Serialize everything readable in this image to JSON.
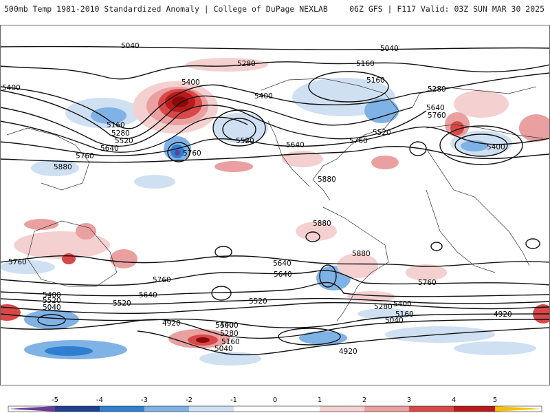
{
  "header": {
    "left_title": "500mb Temp 1981-2010 Standardized Anomaly | College of DuPage NEXLAB",
    "right_title": "06Z GFS | F117 Valid: 03Z SUN MAR 30 2025"
  },
  "colors": {
    "cold_5": "#6a3d9a",
    "cold_4": "#1f3f8f",
    "cold_3": "#2f7fd0",
    "cold_2": "#7fb2e5",
    "cold_1": "#cfe0f2",
    "warm_1": "#f5d0d0",
    "warm_2": "#eaa0a0",
    "warm_3": "#d94848",
    "warm_4": "#b81b1b",
    "warm_5": "#8a0a0a",
    "extreme_warm": "#f5c000",
    "contour": "#111111"
  },
  "contour_labels": [
    "5040",
    "5040",
    "5280",
    "5160",
    "5160",
    "5280",
    "5400",
    "5400",
    "5400",
    "5160",
    "5280",
    "5520",
    "5640",
    "5640",
    "5760",
    "5760",
    "5520",
    "5520",
    "5640",
    "5760",
    "5400",
    "5880",
    "5880",
    "5880",
    "5880",
    "5760",
    "5760",
    "5640",
    "5640",
    "5760",
    "5760",
    "5640",
    "5520",
    "5400",
    "5520",
    "5400",
    "5040",
    "5520",
    "5280",
    "5160",
    "5040",
    "5400",
    "4920",
    "5400",
    "5280",
    "5160",
    "5040",
    "4920",
    "4920"
  ],
  "colorbar": {
    "ticks": [
      "-5",
      "-4",
      "-3",
      "-2",
      "-1",
      "0",
      "1",
      "2",
      "3",
      "4",
      "5"
    ]
  }
}
